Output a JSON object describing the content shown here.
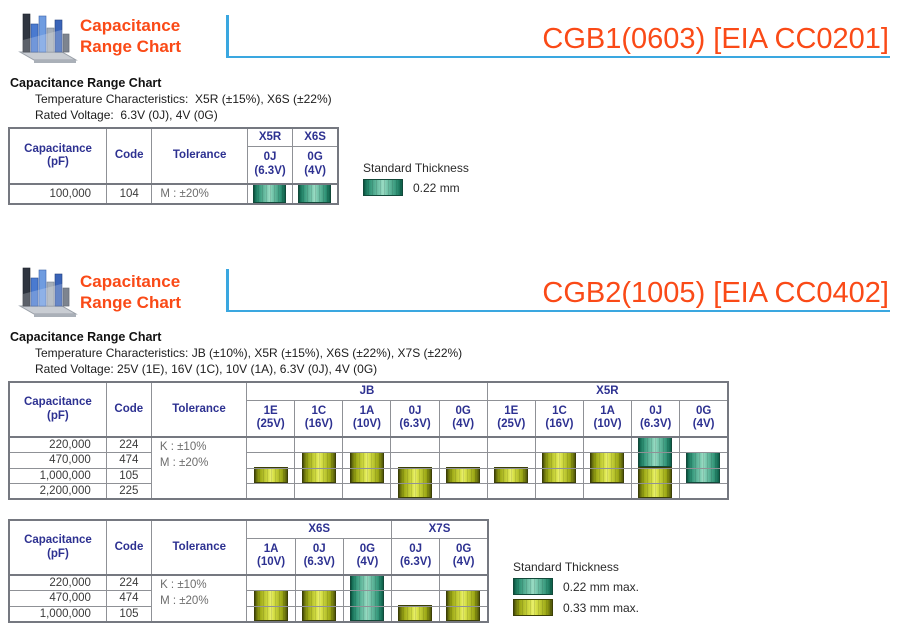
{
  "colors": {
    "accent_orange": "#fa4a17",
    "line_blue": "#3aa7e0",
    "header_navy": "#2d3191",
    "teal_bar": "#2f9376",
    "yellow_bar": "#b9c520"
  },
  "sections": [
    {
      "logo_text": "Capacitance\nRange Chart",
      "part_title": "CGB1(0603) [EIA CC0201]",
      "heading": "Capacitance Range Chart",
      "temperature_line": "Temperature Characteristics:  X5R (±15%), X6S (±22%)",
      "voltage_line": "Rated Voltage:  6.3V (0J), 4V (0G)",
      "legend": {
        "title": "Standard Thickness",
        "items": [
          {
            "style": "teal",
            "label": "0.22 mm"
          }
        ]
      }
    },
    {
      "logo_text": "Capacitance\nRange Chart",
      "part_title": "CGB2(1005) [EIA CC0402]",
      "heading": "Capacitance Range Chart",
      "temperature_line": "Temperature Characteristics: JB (±10%), X5R (±15%), X6S (±22%), X7S (±22%)",
      "voltage_line": "Rated Voltage: 25V (1E), 16V (1C), 10V (1A), 6.3V (0J), 4V (0G)",
      "legend": {
        "title": "Standard Thickness",
        "items": [
          {
            "style": "teal",
            "label": "0.22 mm max."
          },
          {
            "style": "yellow",
            "label": "0.33 mm max."
          }
        ]
      }
    }
  ],
  "chart_data": [
    {
      "type": "table",
      "title": "CGB1(0603) capacitance range chart",
      "fixed_headers": {
        "capacitance": [
          "Capacitance",
          "(pF)"
        ],
        "code": "Code",
        "tolerance": "Tolerance"
      },
      "groups": [
        {
          "label": "X5R",
          "cols": [
            {
              "code": "0J",
              "volt": "(6.3V)"
            }
          ]
        },
        {
          "label": "X6S",
          "cols": [
            {
              "code": "0G",
              "volt": "(4V)"
            }
          ]
        }
      ],
      "rows": [
        {
          "capacitance": "100,000",
          "code": "104"
        }
      ],
      "tolerance_lines": [
        "M : ±20%"
      ],
      "bars": [
        {
          "col": 0,
          "row_from": 0,
          "row_to": 0,
          "style": "teal",
          "thickness": "0.22 mm"
        },
        {
          "col": 1,
          "row_from": 0,
          "row_to": 0,
          "style": "teal",
          "thickness": "0.22 mm"
        }
      ]
    },
    {
      "type": "table",
      "title": "CGB2(1005) capacitance range chart — JB / X5R",
      "fixed_headers": {
        "capacitance": [
          "Capacitance",
          "(pF)"
        ],
        "code": "Code",
        "tolerance": "Tolerance"
      },
      "groups": [
        {
          "label": "JB",
          "cols": [
            {
              "code": "1E",
              "volt": "(25V)"
            },
            {
              "code": "1C",
              "volt": "(16V)"
            },
            {
              "code": "1A",
              "volt": "(10V)"
            },
            {
              "code": "0J",
              "volt": "(6.3V)"
            },
            {
              "code": "0G",
              "volt": "(4V)"
            }
          ]
        },
        {
          "label": "X5R",
          "cols": [
            {
              "code": "1E",
              "volt": "(25V)"
            },
            {
              "code": "1C",
              "volt": "(16V)"
            },
            {
              "code": "1A",
              "volt": "(10V)"
            },
            {
              "code": "0J",
              "volt": "(6.3V)"
            },
            {
              "code": "0G",
              "volt": "(4V)"
            }
          ]
        }
      ],
      "rows": [
        {
          "capacitance": "220,000",
          "code": "224"
        },
        {
          "capacitance": "470,000",
          "code": "474"
        },
        {
          "capacitance": "1,000,000",
          "code": "105"
        },
        {
          "capacitance": "2,200,000",
          "code": "225"
        }
      ],
      "tolerance_lines": [
        "K : ±10%",
        "M : ±20%"
      ],
      "bars": [
        {
          "col": 0,
          "row_from": 2,
          "row_to": 2,
          "style": "yellow",
          "thickness": "0.33 mm max."
        },
        {
          "col": 1,
          "row_from": 1,
          "row_to": 2,
          "style": "yellow",
          "thickness": "0.33 mm max."
        },
        {
          "col": 2,
          "row_from": 1,
          "row_to": 2,
          "style": "yellow",
          "thickness": "0.33 mm max."
        },
        {
          "col": 3,
          "row_from": 2,
          "row_to": 3,
          "style": "yellow",
          "thickness": "0.33 mm max."
        },
        {
          "col": 4,
          "row_from": 2,
          "row_to": 2,
          "style": "yellow",
          "thickness": "0.33 mm max."
        },
        {
          "col": 5,
          "row_from": 2,
          "row_to": 2,
          "style": "yellow",
          "thickness": "0.33 mm max."
        },
        {
          "col": 6,
          "row_from": 1,
          "row_to": 2,
          "style": "yellow",
          "thickness": "0.33 mm max."
        },
        {
          "col": 7,
          "row_from": 1,
          "row_to": 2,
          "style": "yellow",
          "thickness": "0.33 mm max."
        },
        {
          "col": 8,
          "row_from": 0,
          "row_to": 1,
          "style": "teal",
          "thickness": "0.22 mm max."
        },
        {
          "col": 8,
          "row_from": 2,
          "row_to": 3,
          "style": "yellow",
          "thickness": "0.33 mm max."
        },
        {
          "col": 9,
          "row_from": 1,
          "row_to": 2,
          "style": "teal",
          "thickness": "0.22 mm max."
        }
      ]
    },
    {
      "type": "table",
      "title": "CGB2(1005) capacitance range chart — X6S / X7S",
      "fixed_headers": {
        "capacitance": [
          "Capacitance",
          "(pF)"
        ],
        "code": "Code",
        "tolerance": "Tolerance"
      },
      "groups": [
        {
          "label": "X6S",
          "cols": [
            {
              "code": "1A",
              "volt": "(10V)"
            },
            {
              "code": "0J",
              "volt": "(6.3V)"
            },
            {
              "code": "0G",
              "volt": "(4V)"
            }
          ]
        },
        {
          "label": "X7S",
          "cols": [
            {
              "code": "0J",
              "volt": "(6.3V)"
            },
            {
              "code": "0G",
              "volt": "(4V)"
            }
          ]
        }
      ],
      "rows": [
        {
          "capacitance": "220,000",
          "code": "224"
        },
        {
          "capacitance": "470,000",
          "code": "474"
        },
        {
          "capacitance": "1,000,000",
          "code": "105"
        }
      ],
      "tolerance_lines": [
        "K : ±10%",
        "M : ±20%"
      ],
      "bars": [
        {
          "col": 0,
          "row_from": 1,
          "row_to": 2,
          "style": "yellow",
          "thickness": "0.33 mm max."
        },
        {
          "col": 1,
          "row_from": 1,
          "row_to": 2,
          "style": "yellow",
          "thickness": "0.33 mm max."
        },
        {
          "col": 2,
          "row_from": 0,
          "row_to": 2,
          "style": "teal",
          "thickness": "0.22 mm max."
        },
        {
          "col": 3,
          "row_from": 2,
          "row_to": 2,
          "style": "yellow",
          "thickness": "0.33 mm max."
        },
        {
          "col": 4,
          "row_from": 1,
          "row_to": 2,
          "style": "yellow",
          "thickness": "0.33 mm max."
        }
      ]
    }
  ]
}
